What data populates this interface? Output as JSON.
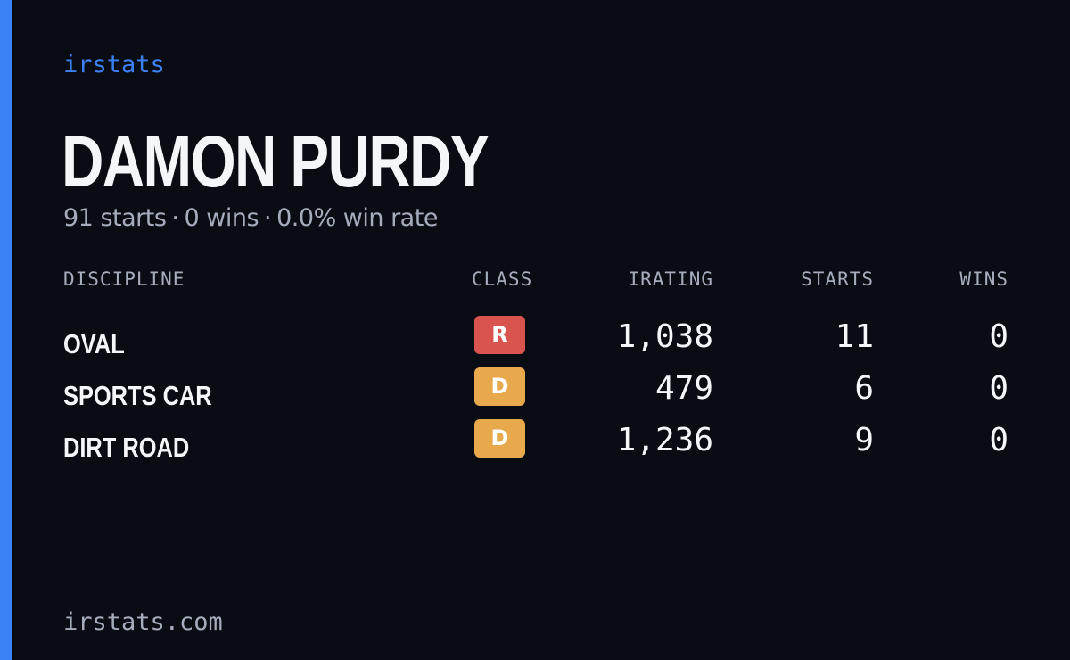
{
  "brand": "irstats",
  "driver": {
    "name": "DAMON PURDY"
  },
  "summary": {
    "starts": "91 starts",
    "wins": "0 wins",
    "win_rate": "0.0% win rate",
    "separator": "·"
  },
  "table": {
    "headers": {
      "discipline": "DISCIPLINE",
      "class": "CLASS",
      "irating": "IRATING",
      "starts": "STARTS",
      "wins": "WINS"
    },
    "rows": [
      {
        "discipline": "OVAL",
        "class": "R",
        "class_color": "#d9534f",
        "irating": "1,038",
        "starts": "11",
        "wins": "0"
      },
      {
        "discipline": "SPORTS CAR",
        "class": "D",
        "class_color": "#e8a94c",
        "irating": "479",
        "starts": "6",
        "wins": "0"
      },
      {
        "discipline": "DIRT ROAD",
        "class": "D",
        "class_color": "#e8a94c",
        "irating": "1,236",
        "starts": "9",
        "wins": "0"
      }
    ]
  },
  "footer": "irstats.com",
  "colors": {
    "accent": "#3b82f6",
    "background": "#0a0c14",
    "text_primary": "#f5f6fa",
    "text_muted": "#a5adbd"
  }
}
